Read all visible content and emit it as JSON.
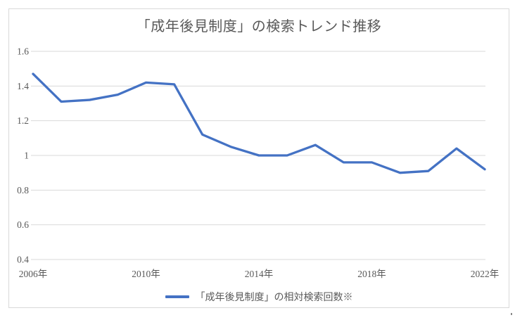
{
  "chart": {
    "title": "「成年後見制度」の検索トレンド推移",
    "legend_label": "「成年後見制度」の相対検索回数※",
    "colors": {
      "line": "#4472C4",
      "grid": "#D9D9D9",
      "frame": "#D9D9D9",
      "text": "#595959"
    }
  },
  "chart_data": {
    "type": "line",
    "title": "「成年後見制度」の検索トレンド推移",
    "x": [
      2006,
      2007,
      2008,
      2009,
      2010,
      2011,
      2012,
      2013,
      2014,
      2015,
      2016,
      2017,
      2018,
      2019,
      2020,
      2021,
      2022
    ],
    "x_tick_years": [
      2006,
      2010,
      2014,
      2018,
      2022
    ],
    "x_tick_labels": [
      "2006年",
      "2010年",
      "2014年",
      "2018年",
      "2022年"
    ],
    "series": [
      {
        "name": "「成年後見制度」の相対検索回数※",
        "values": [
          1.47,
          1.31,
          1.32,
          1.35,
          1.42,
          1.41,
          1.12,
          1.05,
          1.0,
          1.0,
          1.06,
          0.96,
          0.96,
          0.9,
          0.91,
          1.04,
          0.92
        ]
      }
    ],
    "ylim": [
      0.4,
      1.6
    ],
    "yticks": [
      0.4,
      0.6,
      0.8,
      1,
      1.2,
      1.4,
      1.6
    ],
    "ytick_labels": [
      "0.4",
      "0.6",
      "0.8",
      "1",
      "1.2",
      "1.4",
      "1.6"
    ],
    "grid": true,
    "legend_position": "bottom"
  }
}
